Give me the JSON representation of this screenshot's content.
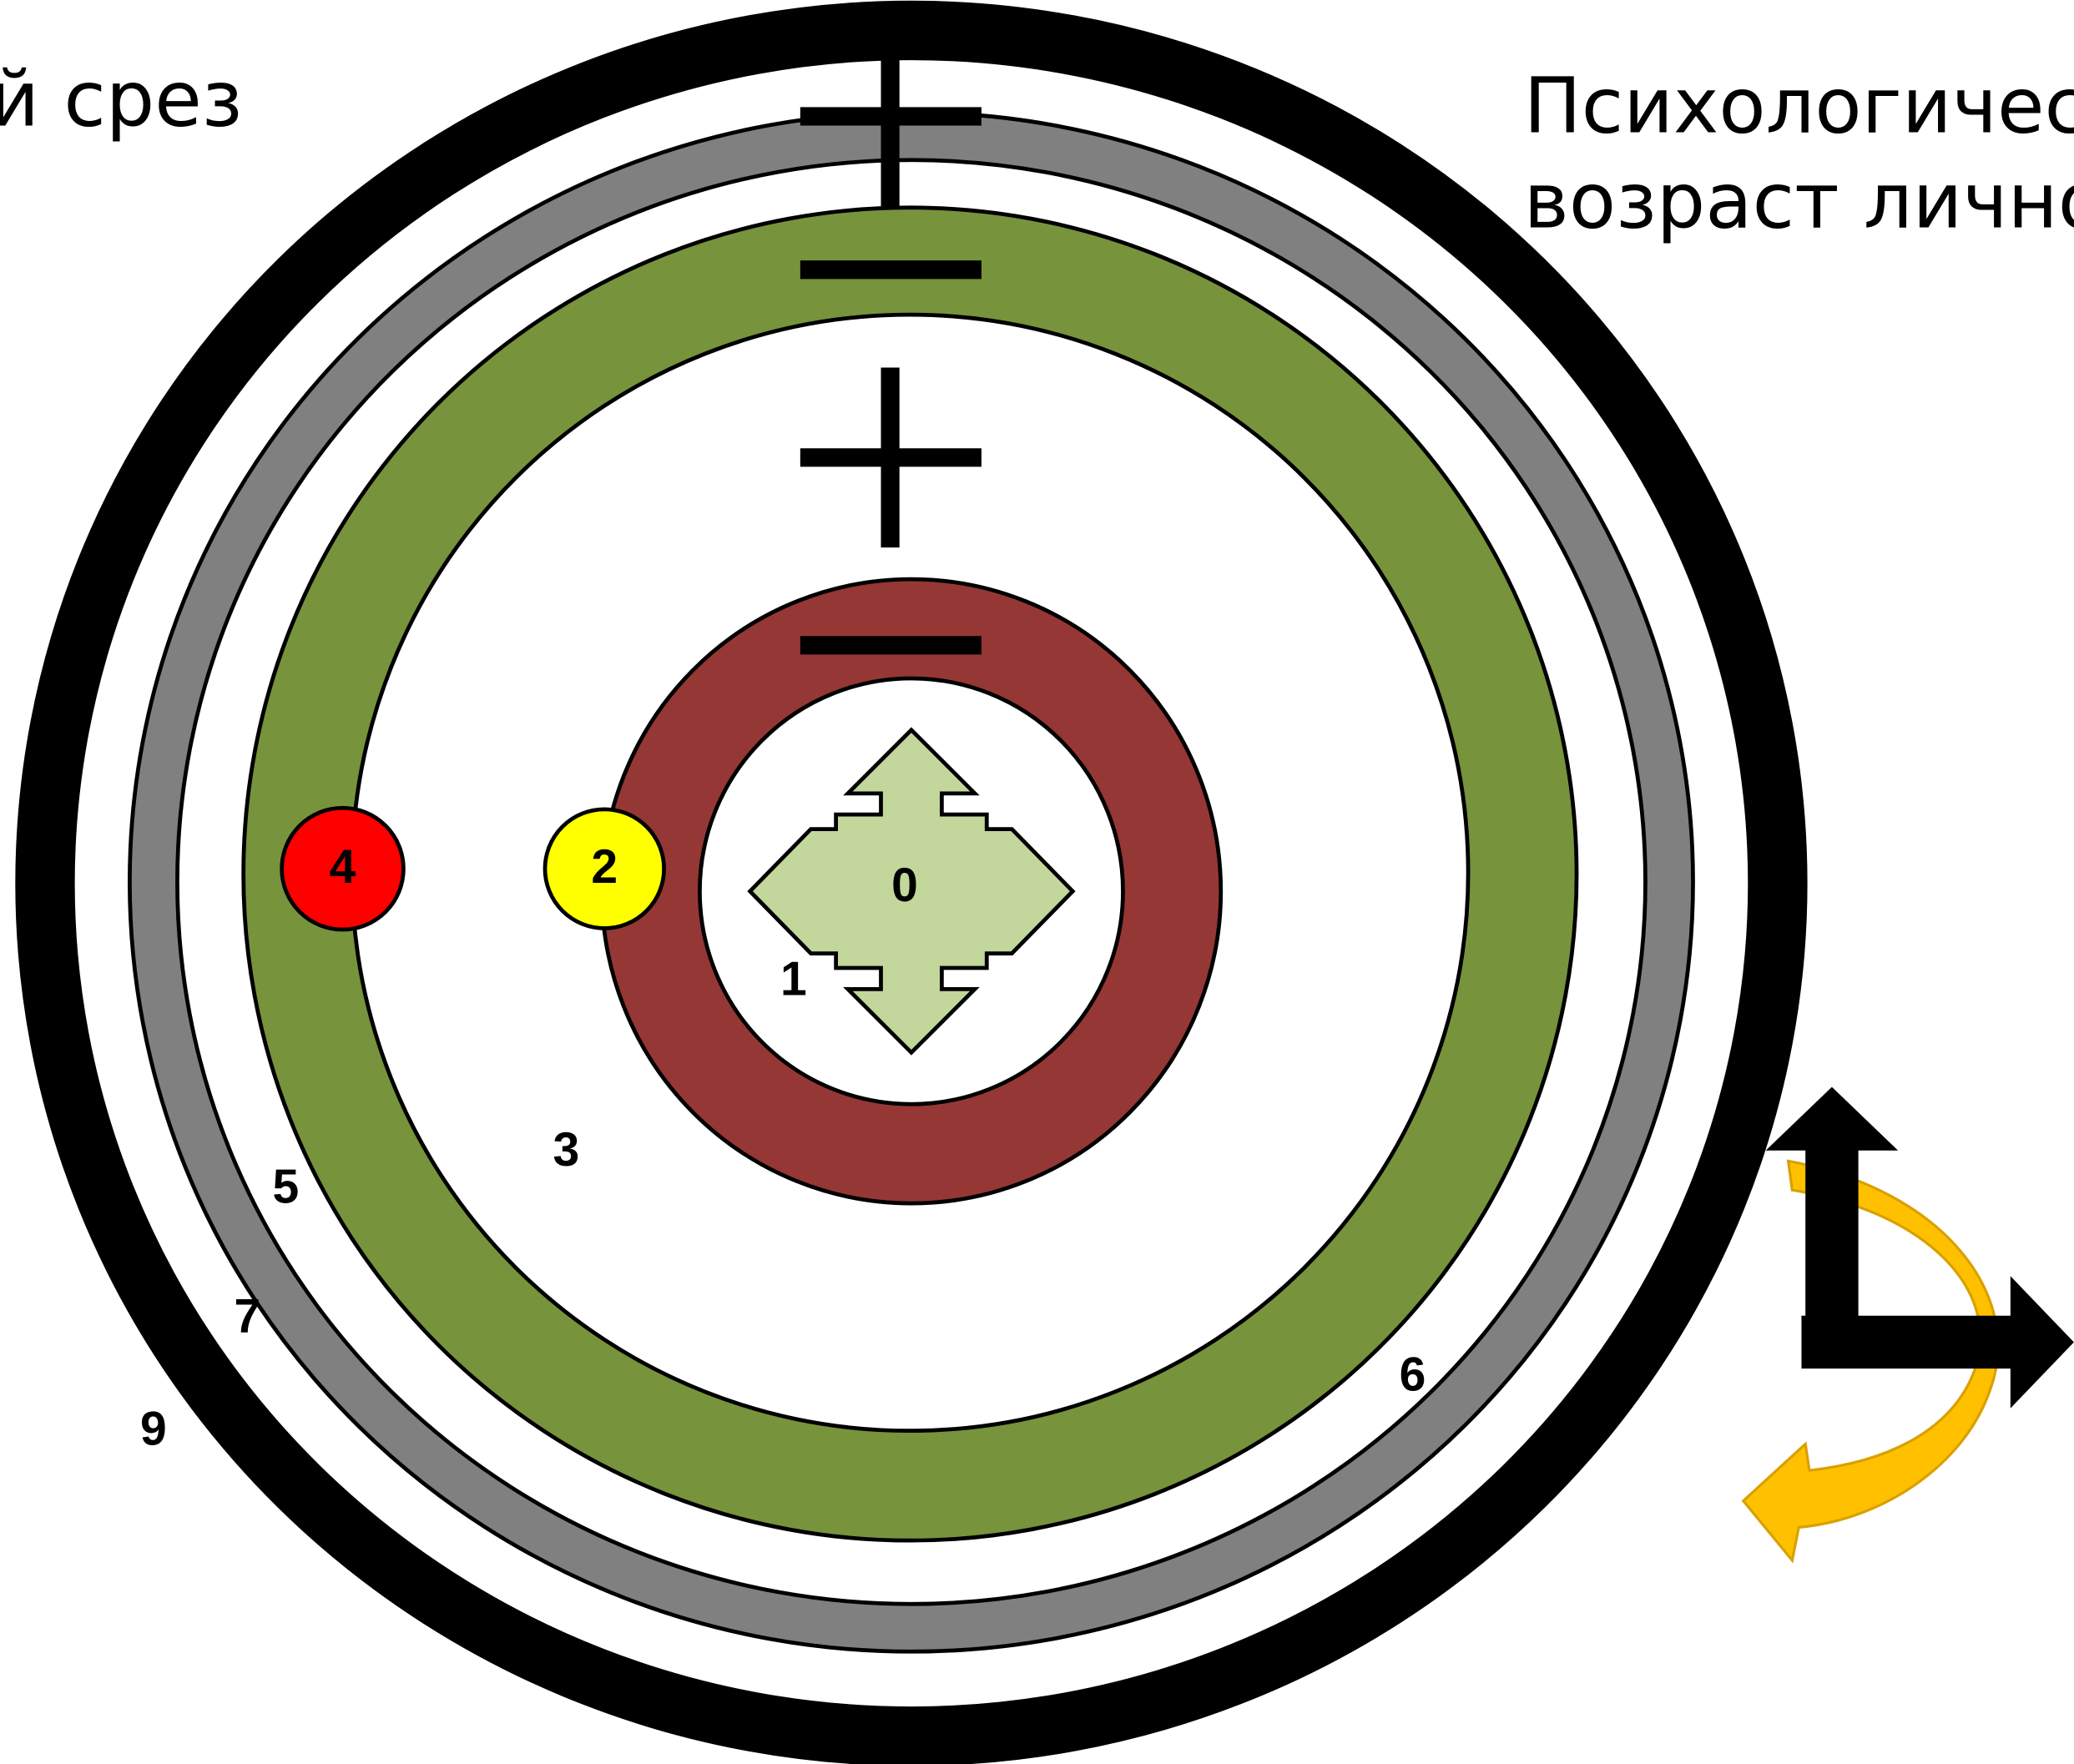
{
  "header": {
    "left_title": "й срез",
    "right_title_line1": "Психологичес",
    "right_title_line2": "возраст лично"
  },
  "labels": [
    "0",
    "1",
    "2",
    "3",
    "4",
    "5",
    "6",
    "7",
    "9"
  ]
}
